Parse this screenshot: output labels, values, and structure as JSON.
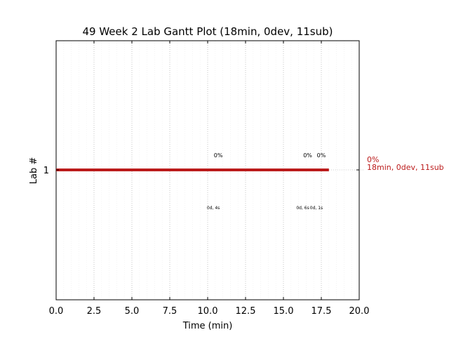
{
  "chart_data": {
    "type": "gantt",
    "title": "49 Week 2 Lab Gantt Plot (18min, 0dev, 11sub)",
    "xlabel": "Time (min)",
    "ylabel": "Lab #",
    "xlim": [
      0,
      20
    ],
    "x_ticks": [
      "0.0",
      "2.5",
      "5.0",
      "7.5",
      "10.0",
      "12.5",
      "15.0",
      "17.5",
      "20.0"
    ],
    "x_tick_values": [
      0,
      2.5,
      5,
      7.5,
      10,
      12.5,
      15,
      17.5,
      20
    ],
    "y_ticks": [
      "1"
    ],
    "grid": true,
    "bar_color": "#bb1b1b",
    "bars": [
      {
        "lab": "1",
        "start": 0,
        "end": 18,
        "side_pct": "0%",
        "side_summary": "18min, 0dev, 11sub"
      }
    ],
    "annotations": [
      {
        "x": 10.7,
        "label": "0%",
        "detail": "0d, 4s"
      },
      {
        "x": 16.6,
        "label": "0%",
        "detail": "0d, 6s"
      },
      {
        "x": 17.5,
        "label": "0%",
        "detail": "0d, 1s"
      }
    ]
  }
}
